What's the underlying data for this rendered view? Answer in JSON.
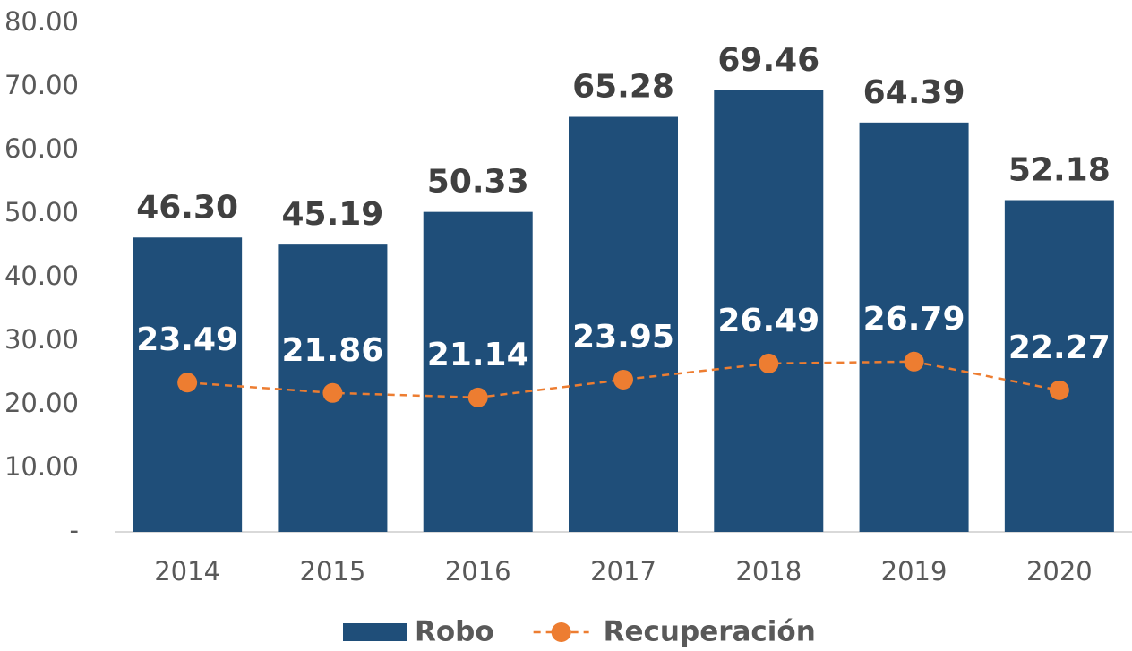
{
  "chart_data": {
    "type": "bar",
    "categories": [
      "2014",
      "2015",
      "2016",
      "2017",
      "2018",
      "2019",
      "2020"
    ],
    "series": [
      {
        "name": "Robo",
        "type": "bar",
        "color": "#1f4e79",
        "values": [
          46.3,
          45.19,
          50.33,
          65.28,
          69.46,
          64.39,
          52.18
        ],
        "value_labels": [
          "46.30",
          "45.19",
          "50.33",
          "65.28",
          "69.46",
          "64.39",
          "52.18"
        ]
      },
      {
        "name": "Recuperación",
        "type": "line",
        "color": "#ed7d31",
        "values": [
          23.49,
          21.86,
          21.14,
          23.95,
          26.49,
          26.79,
          22.27
        ],
        "value_labels": [
          "23.49",
          "21.86",
          "21.14",
          "23.95",
          "26.49",
          "26.79",
          "22.27"
        ]
      }
    ],
    "ylim": [
      0,
      80
    ],
    "yticks": [
      {
        "value": 0,
        "label": "-"
      },
      {
        "value": 10,
        "label": "10.00"
      },
      {
        "value": 20,
        "label": "20.00"
      },
      {
        "value": 30,
        "label": "30.00"
      },
      {
        "value": 40,
        "label": "40.00"
      },
      {
        "value": 50,
        "label": "50.00"
      },
      {
        "value": 60,
        "label": "60.00"
      },
      {
        "value": 70,
        "label": "70.00"
      },
      {
        "value": 80,
        "label": "80.00"
      }
    ],
    "grid": false,
    "legend": "bottom"
  }
}
